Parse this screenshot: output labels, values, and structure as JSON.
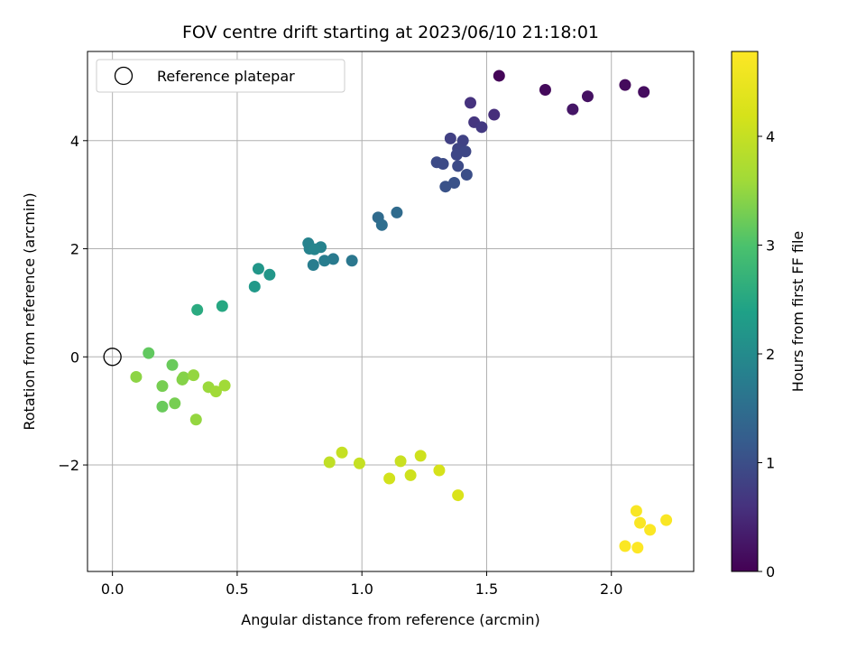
{
  "chart_data": {
    "type": "scatter",
    "title": "FOV centre drift starting at 2023/06/10 21:18:01",
    "xlabel": "Angular distance from reference (arcmin)",
    "ylabel": "Rotation from reference (arcmin)",
    "xlim": [
      -0.1,
      2.33
    ],
    "ylim": [
      -3.97,
      5.65
    ],
    "xticks": [
      0.0,
      0.5,
      1.0,
      1.5,
      2.0
    ],
    "xtick_labels": [
      "0.0",
      "0.5",
      "1.0",
      "1.5",
      "2.0"
    ],
    "yticks": [
      -2,
      0,
      2,
      4
    ],
    "ytick_labels": [
      "−2",
      "0",
      "2",
      "4"
    ],
    "grid": true,
    "legend": {
      "placement": "top-left",
      "entries": [
        "Reference platepar"
      ]
    },
    "reference_point": {
      "name": "Reference platepar",
      "x": 0.0,
      "y": 0.0
    },
    "colorbar": {
      "label": "Hours from first FF file",
      "colormap": "viridis",
      "range": [
        0,
        4.78
      ],
      "ticks": [
        0,
        1,
        2,
        3,
        4
      ],
      "tick_labels": [
        "0",
        "1",
        "2",
        "3",
        "4"
      ]
    },
    "points": [
      {
        "x": 1.55,
        "y": 5.2,
        "c": 0.05
      },
      {
        "x": 1.735,
        "y": 4.94,
        "c": 0.1
      },
      {
        "x": 2.055,
        "y": 5.03,
        "c": 0.12
      },
      {
        "x": 2.13,
        "y": 4.9,
        "c": 0.15
      },
      {
        "x": 1.905,
        "y": 4.82,
        "c": 0.2
      },
      {
        "x": 1.845,
        "y": 4.58,
        "c": 0.25
      },
      {
        "x": 1.53,
        "y": 4.48,
        "c": 0.55
      },
      {
        "x": 1.435,
        "y": 4.7,
        "c": 0.6
      },
      {
        "x": 1.45,
        "y": 4.34,
        "c": 0.65
      },
      {
        "x": 1.48,
        "y": 4.25,
        "c": 0.7
      },
      {
        "x": 1.355,
        "y": 4.04,
        "c": 0.8
      },
      {
        "x": 1.405,
        "y": 4.0,
        "c": 0.82
      },
      {
        "x": 1.385,
        "y": 3.85,
        "c": 0.85
      },
      {
        "x": 1.38,
        "y": 3.74,
        "c": 0.9
      },
      {
        "x": 1.415,
        "y": 3.8,
        "c": 0.9
      },
      {
        "x": 1.3,
        "y": 3.6,
        "c": 0.95
      },
      {
        "x": 1.325,
        "y": 3.57,
        "c": 0.95
      },
      {
        "x": 1.385,
        "y": 3.53,
        "c": 0.95
      },
      {
        "x": 1.42,
        "y": 3.37,
        "c": 1.0
      },
      {
        "x": 1.37,
        "y": 3.22,
        "c": 1.05
      },
      {
        "x": 1.335,
        "y": 3.15,
        "c": 1.05
      },
      {
        "x": 1.065,
        "y": 2.58,
        "c": 1.45
      },
      {
        "x": 1.14,
        "y": 2.67,
        "c": 1.45
      },
      {
        "x": 1.08,
        "y": 2.44,
        "c": 1.5
      },
      {
        "x": 0.785,
        "y": 2.1,
        "c": 1.85
      },
      {
        "x": 0.79,
        "y": 2.0,
        "c": 1.85
      },
      {
        "x": 0.835,
        "y": 2.03,
        "c": 1.85
      },
      {
        "x": 0.81,
        "y": 1.99,
        "c": 1.9
      },
      {
        "x": 0.885,
        "y": 1.81,
        "c": 1.7
      },
      {
        "x": 0.85,
        "y": 1.78,
        "c": 1.75
      },
      {
        "x": 0.96,
        "y": 1.78,
        "c": 1.65
      },
      {
        "x": 0.805,
        "y": 1.7,
        "c": 1.75
      },
      {
        "x": 0.585,
        "y": 1.63,
        "c": 2.2
      },
      {
        "x": 0.63,
        "y": 1.52,
        "c": 2.2
      },
      {
        "x": 0.57,
        "y": 1.3,
        "c": 2.25
      },
      {
        "x": 0.44,
        "y": 0.94,
        "c": 2.5
      },
      {
        "x": 0.34,
        "y": 0.87,
        "c": 2.55
      },
      {
        "x": 0.145,
        "y": 0.07,
        "c": 3.15
      },
      {
        "x": 0.095,
        "y": -0.37,
        "c": 3.45
      },
      {
        "x": 0.24,
        "y": -0.15,
        "c": 3.2
      },
      {
        "x": 0.2,
        "y": -0.54,
        "c": 3.3
      },
      {
        "x": 0.285,
        "y": -0.38,
        "c": 3.4
      },
      {
        "x": 0.28,
        "y": -0.42,
        "c": 3.4
      },
      {
        "x": 0.325,
        "y": -0.34,
        "c": 3.5
      },
      {
        "x": 0.385,
        "y": -0.56,
        "c": 3.55
      },
      {
        "x": 0.45,
        "y": -0.53,
        "c": 3.6
      },
      {
        "x": 0.415,
        "y": -0.64,
        "c": 3.6
      },
      {
        "x": 0.25,
        "y": -0.86,
        "c": 3.3
      },
      {
        "x": 0.2,
        "y": -0.92,
        "c": 3.2
      },
      {
        "x": 0.335,
        "y": -1.16,
        "c": 3.5
      },
      {
        "x": 0.92,
        "y": -1.77,
        "c": 4.0
      },
      {
        "x": 0.87,
        "y": -1.95,
        "c": 3.95
      },
      {
        "x": 0.99,
        "y": -1.97,
        "c": 4.0
      },
      {
        "x": 1.155,
        "y": -1.93,
        "c": 4.05
      },
      {
        "x": 1.235,
        "y": -1.83,
        "c": 4.1
      },
      {
        "x": 1.195,
        "y": -2.19,
        "c": 4.1
      },
      {
        "x": 1.11,
        "y": -2.25,
        "c": 4.15
      },
      {
        "x": 1.31,
        "y": -2.1,
        "c": 4.2
      },
      {
        "x": 1.385,
        "y": -2.56,
        "c": 4.25
      },
      {
        "x": 2.1,
        "y": -2.85,
        "c": 4.7
      },
      {
        "x": 2.115,
        "y": -3.07,
        "c": 4.72
      },
      {
        "x": 2.22,
        "y": -3.02,
        "c": 4.72
      },
      {
        "x": 2.155,
        "y": -3.2,
        "c": 4.75
      },
      {
        "x": 2.055,
        "y": -3.5,
        "c": 4.75
      },
      {
        "x": 2.105,
        "y": -3.53,
        "c": 4.78
      }
    ]
  }
}
